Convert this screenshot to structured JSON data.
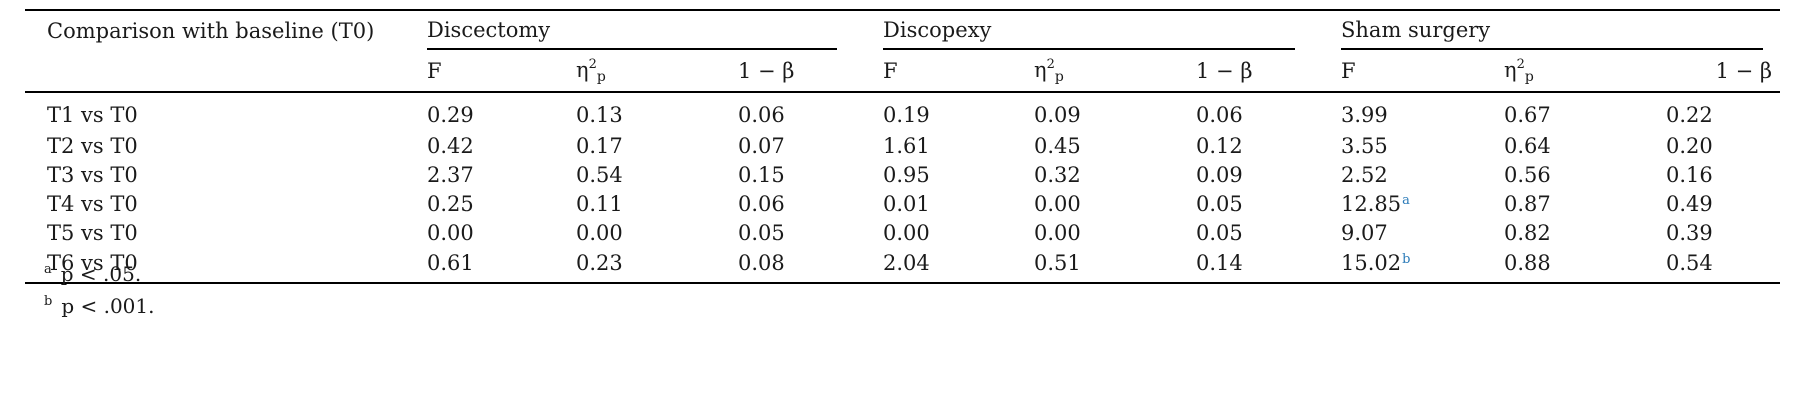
{
  "table": {
    "corner_label": "Comparison with baseline (T0)",
    "groups": [
      "Discectomy",
      "Discopexy",
      "Sham surgery"
    ],
    "subheaders": {
      "f": "F",
      "eta_base": "η",
      "eta_sup": "2",
      "eta_sub": "p",
      "power": "1 − β"
    },
    "rows": [
      {
        "label": "T1 vs T0",
        "cells": [
          "0.29",
          "0.13",
          "0.06",
          "0.19",
          "0.09",
          "0.06",
          "3.99",
          "0.67",
          "0.22"
        ],
        "marks": [
          "",
          "",
          "",
          "",
          "",
          "",
          "",
          "",
          ""
        ]
      },
      {
        "label": "T2 vs T0",
        "cells": [
          "0.42",
          "0.17",
          "0.07",
          "1.61",
          "0.45",
          "0.12",
          "3.55",
          "0.64",
          "0.20"
        ],
        "marks": [
          "",
          "",
          "",
          "",
          "",
          "",
          "",
          "",
          ""
        ]
      },
      {
        "label": "T3 vs T0",
        "cells": [
          "2.37",
          "0.54",
          "0.15",
          "0.95",
          "0.32",
          "0.09",
          "2.52",
          "0.56",
          "0.16"
        ],
        "marks": [
          "",
          "",
          "",
          "",
          "",
          "",
          "",
          "",
          ""
        ]
      },
      {
        "label": "T4 vs T0",
        "cells": [
          "0.25",
          "0.11",
          "0.06",
          "0.01",
          "0.00",
          "0.05",
          "12.85",
          "0.87",
          "0.49"
        ],
        "marks": [
          "",
          "",
          "",
          "",
          "",
          "",
          "a",
          "",
          ""
        ]
      },
      {
        "label": "T5 vs T0",
        "cells": [
          "0.00",
          "0.00",
          "0.05",
          "0.00",
          "0.00",
          "0.05",
          "9.07",
          "0.82",
          "0.39"
        ],
        "marks": [
          "",
          "",
          "",
          "",
          "",
          "",
          "",
          "",
          ""
        ]
      },
      {
        "label": "T6 vs T0",
        "cells": [
          "0.61",
          "0.23",
          "0.08",
          "2.04",
          "0.51",
          "0.14",
          "15.02",
          "0.88",
          "0.54"
        ],
        "marks": [
          "",
          "",
          "",
          "",
          "",
          "",
          "b",
          "",
          ""
        ]
      }
    ]
  },
  "footnotes": [
    {
      "mark": "a",
      "text": "p < .05."
    },
    {
      "mark": "b",
      "text": "p < .001."
    }
  ],
  "colors": {
    "text": "#1a1a1a",
    "rule": "#000000",
    "footnote_link": "#2a7ab8"
  }
}
